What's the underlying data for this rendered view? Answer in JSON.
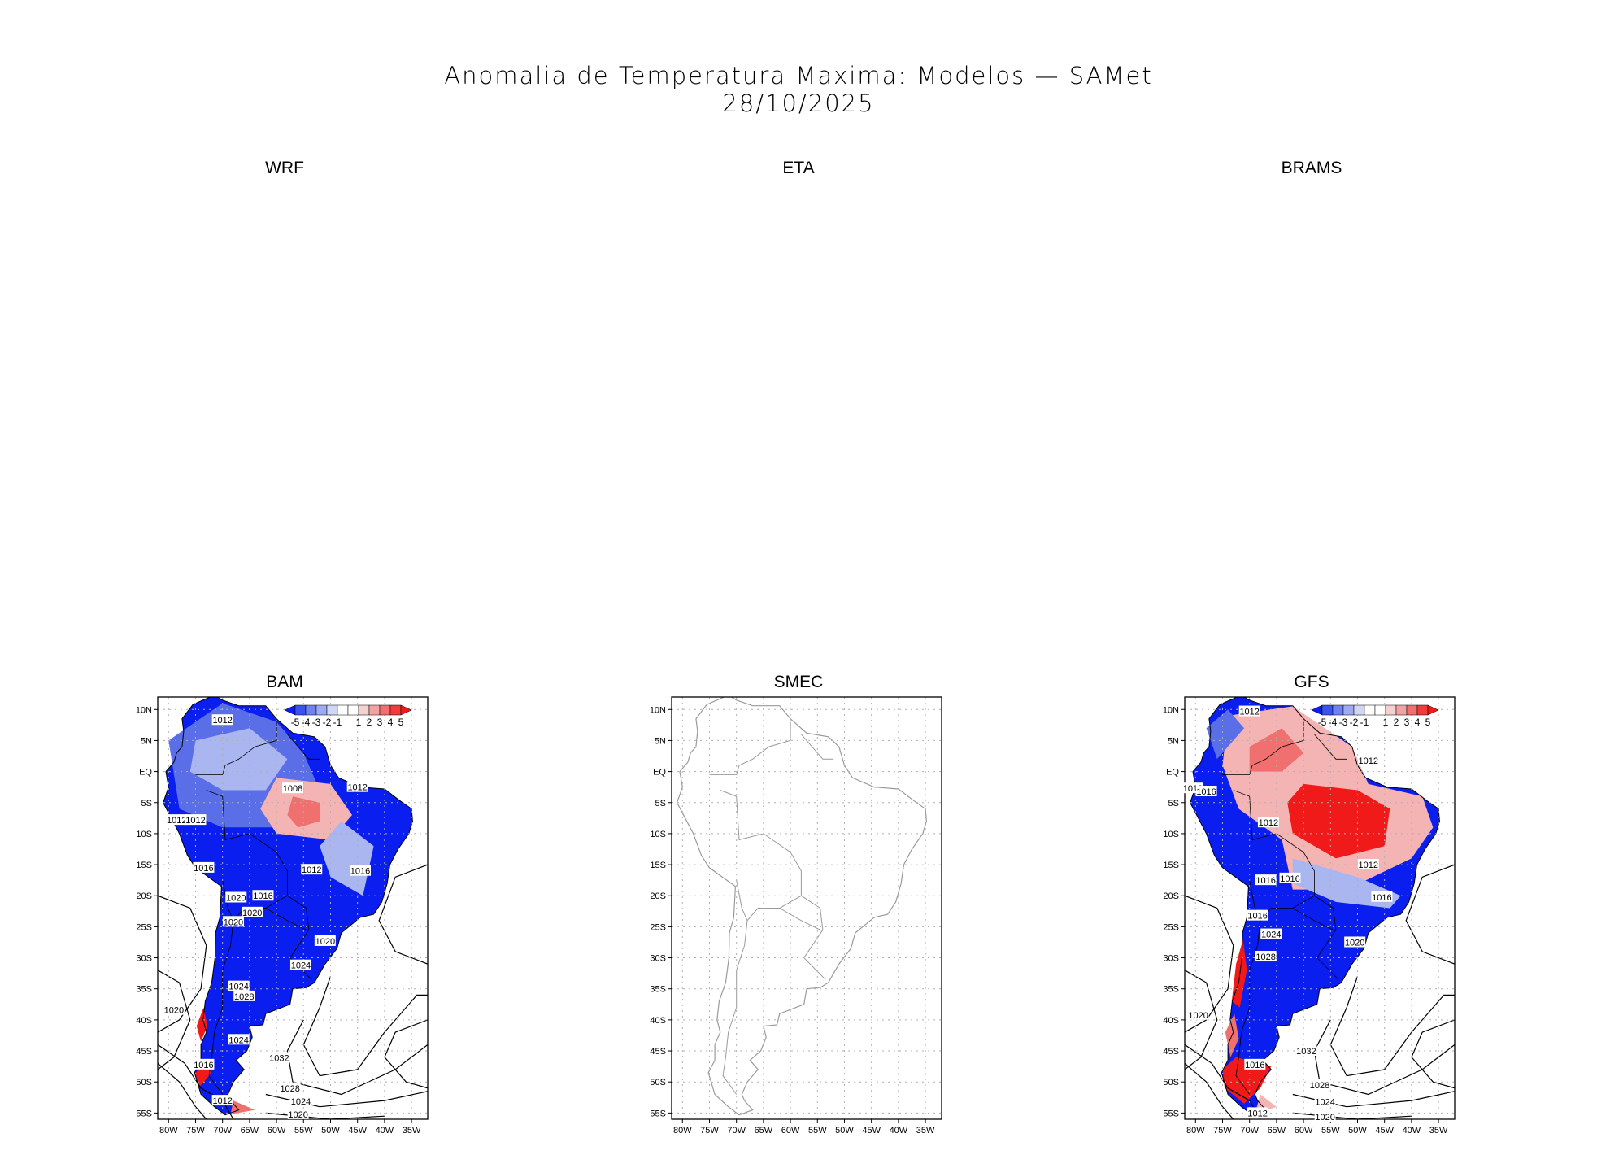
{
  "title": {
    "line1": "Anomalia de Temperatura Maxima: Modelos — SAMet",
    "line2": "28/10/2025"
  },
  "colors": {
    "strong_blue": "#0a1ef0",
    "mid_blue": "#5a6ee8",
    "light_blue": "#aab6f0",
    "light_red": "#f4b4b4",
    "mid_red": "#f07070",
    "strong_red": "#f01a1a",
    "border_gray": "#9a9a9a",
    "grid_gray": "#b0b0b0"
  },
  "chart_data": [
    {
      "type": "heatmap",
      "title": "WRF",
      "empty": true
    },
    {
      "type": "heatmap",
      "title": "ETA",
      "empty": true
    },
    {
      "type": "heatmap",
      "title": "BRAMS",
      "empty": true
    },
    {
      "type": "heatmap",
      "title": "BAM",
      "x_ticks": [
        "80W",
        "75W",
        "70W",
        "65W",
        "60W",
        "55W",
        "50W",
        "45W",
        "40W",
        "35W"
      ],
      "y_ticks": [
        "10N",
        "5N",
        "EQ",
        "5S",
        "10S",
        "15S",
        "20S",
        "25S",
        "30S",
        "35S",
        "40S",
        "45S",
        "50S",
        "55S"
      ],
      "xlim": [
        -82,
        -32
      ],
      "ylim": [
        -56,
        12
      ],
      "colorbar": {
        "ticks": [
          "-5",
          "-4",
          "-3",
          "-2",
          "-1",
          "1",
          "2",
          "3",
          "4",
          "5"
        ],
        "placement": "top-right"
      },
      "contour_labels": [
        {
          "text": "1012",
          "lon": -70,
          "lat": 8.3
        },
        {
          "text": "1008",
          "lon": -57,
          "lat": -2.7
        },
        {
          "text": "1012",
          "lon": -45,
          "lat": -2.5
        },
        {
          "text": "1012",
          "lon": -78.5,
          "lat": -7.8
        },
        {
          "text": "1012",
          "lon": -75,
          "lat": -7.8
        },
        {
          "text": "1016",
          "lon": -73.5,
          "lat": -15.5
        },
        {
          "text": "1012",
          "lon": -53.5,
          "lat": -15.8
        },
        {
          "text": "1016",
          "lon": -44.5,
          "lat": -16
        },
        {
          "text": "1020",
          "lon": -67.5,
          "lat": -20.3
        },
        {
          "text": "1016",
          "lon": -62.5,
          "lat": -20
        },
        {
          "text": "1020",
          "lon": -64.5,
          "lat": -22.7
        },
        {
          "text": "1020",
          "lon": -68,
          "lat": -24.2
        },
        {
          "text": "1020",
          "lon": -51,
          "lat": -27.3
        },
        {
          "text": "1024",
          "lon": -55.5,
          "lat": -31.2
        },
        {
          "text": "1024",
          "lon": -67,
          "lat": -34.6
        },
        {
          "text": "1028",
          "lon": -66,
          "lat": -36.2
        },
        {
          "text": "1020",
          "lon": -79,
          "lat": -38.4
        },
        {
          "text": "1024",
          "lon": -67,
          "lat": -43.2
        },
        {
          "text": "1032",
          "lon": -59.5,
          "lat": -46.1
        },
        {
          "text": "1016",
          "lon": -73.5,
          "lat": -47.2
        },
        {
          "text": "1028",
          "lon": -57.5,
          "lat": -51
        },
        {
          "text": "1012",
          "lon": -70,
          "lat": -53
        },
        {
          "text": "1024",
          "lon": -55.5,
          "lat": -53.1
        },
        {
          "text": "1020",
          "lon": -56,
          "lat": -55.2
        }
      ]
    },
    {
      "type": "heatmap",
      "title": "SMEC",
      "x_ticks": [
        "80W",
        "75W",
        "70W",
        "65W",
        "60W",
        "55W",
        "50W",
        "45W",
        "40W",
        "35W"
      ],
      "y_ticks": [
        "10N",
        "5N",
        "EQ",
        "5S",
        "10S",
        "15S",
        "20S",
        "25S",
        "30S",
        "35S",
        "40S",
        "45S",
        "50S",
        "55S"
      ],
      "xlim": [
        -82,
        -32
      ],
      "ylim": [
        -56,
        12
      ]
    },
    {
      "type": "heatmap",
      "title": "GFS",
      "x_ticks": [
        "80W",
        "75W",
        "70W",
        "65W",
        "60W",
        "55W",
        "50W",
        "45W",
        "40W",
        "35W"
      ],
      "y_ticks": [
        "10N",
        "5N",
        "EQ",
        "5S",
        "10S",
        "15S",
        "20S",
        "25S",
        "30S",
        "35S",
        "40S",
        "45S",
        "50S",
        "55S"
      ],
      "xlim": [
        -82,
        -32
      ],
      "ylim": [
        -56,
        12
      ],
      "colorbar": {
        "ticks": [
          "-5",
          "-4",
          "-3",
          "-2",
          "-1",
          "1",
          "2",
          "3",
          "4",
          "5"
        ],
        "placement": "top-right"
      },
      "contour_labels": [
        {
          "text": "1012",
          "lon": -70,
          "lat": 9.7
        },
        {
          "text": "1012",
          "lon": -48,
          "lat": 1.8
        },
        {
          "text": "1012",
          "lon": -80.5,
          "lat": -2.7
        },
        {
          "text": "1016",
          "lon": -78,
          "lat": -3.2
        },
        {
          "text": "1012",
          "lon": -66.5,
          "lat": -8.2
        },
        {
          "text": "1012",
          "lon": -48,
          "lat": -15
        },
        {
          "text": "1016",
          "lon": -67,
          "lat": -17.5
        },
        {
          "text": "1016",
          "lon": -62.5,
          "lat": -17.2
        },
        {
          "text": "1016",
          "lon": -45.5,
          "lat": -20.2
        },
        {
          "text": "1016",
          "lon": -68.5,
          "lat": -23.2
        },
        {
          "text": "1024",
          "lon": -66,
          "lat": -26.2
        },
        {
          "text": "1020",
          "lon": -50.5,
          "lat": -27.5
        },
        {
          "text": "1028",
          "lon": -67,
          "lat": -29.8
        },
        {
          "text": "1020",
          "lon": -79.5,
          "lat": -39.2
        },
        {
          "text": "1032",
          "lon": -59.5,
          "lat": -45
        },
        {
          "text": "1016",
          "lon": -69,
          "lat": -47.2
        },
        {
          "text": "1028",
          "lon": -57,
          "lat": -50.5
        },
        {
          "text": "1024",
          "lon": -56,
          "lat": -53.2
        },
        {
          "text": "1012",
          "lon": -68.5,
          "lat": -55
        },
        {
          "text": "1020",
          "lon": -56,
          "lat": -55.6
        }
      ]
    }
  ]
}
